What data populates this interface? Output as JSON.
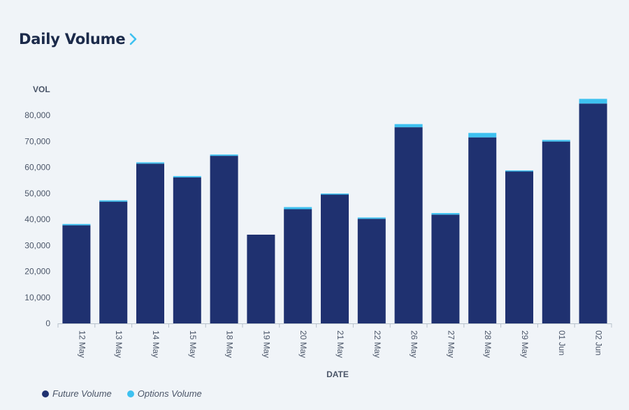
{
  "header": {
    "title": "Daily Volume"
  },
  "colors": {
    "future": "#1f3170",
    "options": "#3ec1f0",
    "axis_text": "#4a5568",
    "axis_line": "#b8c2cc",
    "accent_chevron": "#3ec1f0"
  },
  "legend": [
    {
      "label": "Future Volume",
      "color": "#1f3170"
    },
    {
      "label": "Options Volume",
      "color": "#3ec1f0"
    }
  ],
  "chart_data": {
    "type": "bar",
    "stacked": true,
    "title": "Daily Volume",
    "xlabel": "DATE",
    "ylabel": "VOL",
    "ylim": [
      0,
      90000
    ],
    "yticks": [
      0,
      10000,
      20000,
      30000,
      40000,
      50000,
      60000,
      70000,
      80000
    ],
    "ytick_labels": [
      "0",
      "10,000",
      "20,000",
      "30,000",
      "40,000",
      "50,000",
      "60,000",
      "70,000",
      "80,000"
    ],
    "grid": false,
    "legend_position": "bottom-left",
    "categories": [
      "12 May",
      "13 May",
      "14 May",
      "15 May",
      "18 May",
      "19 May",
      "20 May",
      "21 May",
      "22 May",
      "26 May",
      "27 May",
      "28 May",
      "29 May",
      "01 Jun",
      "02 Jun"
    ],
    "series": [
      {
        "name": "Future Volume",
        "values": [
          37700,
          46800,
          61400,
          56100,
          64400,
          34100,
          43900,
          49700,
          40200,
          75400,
          41800,
          71500,
          58400,
          69900,
          84500
        ]
      },
      {
        "name": "Options Volume",
        "values": [
          500,
          500,
          500,
          500,
          500,
          0,
          800,
          200,
          500,
          1200,
          600,
          1700,
          400,
          600,
          1800
        ]
      }
    ]
  }
}
